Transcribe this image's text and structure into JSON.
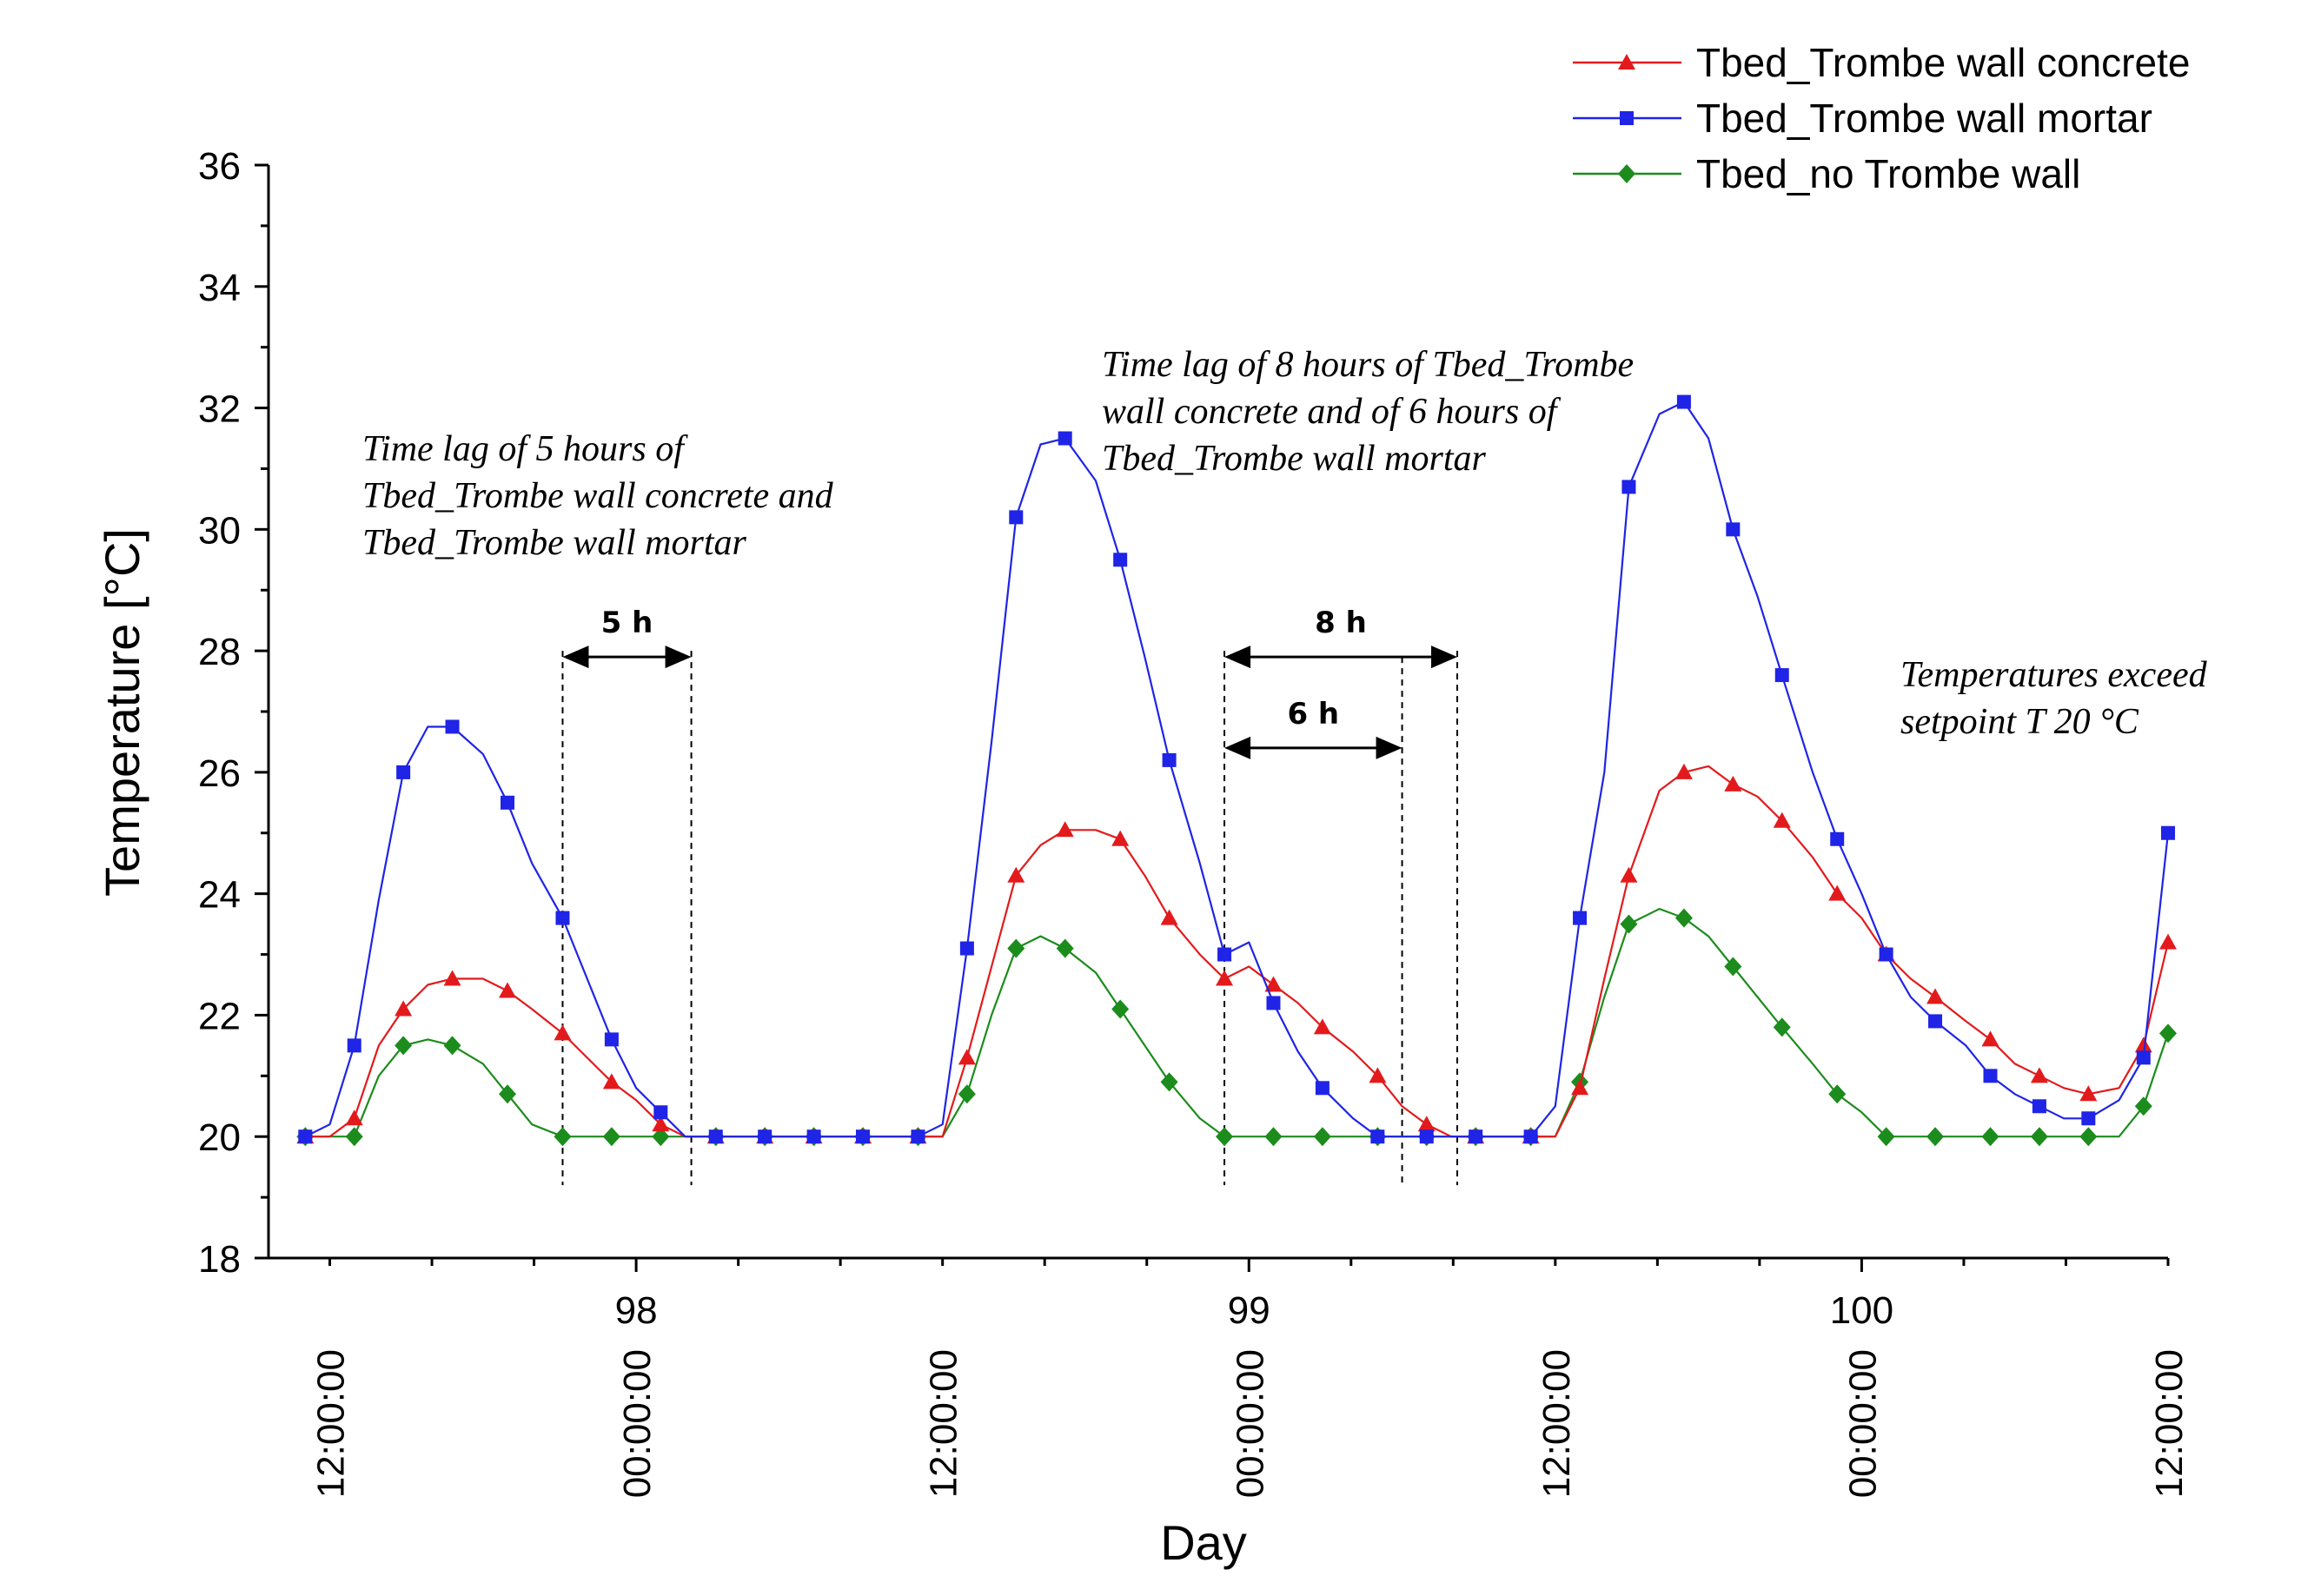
{
  "chart_data": {
    "type": "line",
    "xlabel": "Day",
    "ylabel": "Temperature [°C]",
    "xlim": [
      97.4,
      100.5
    ],
    "ylim": [
      18,
      36
    ],
    "yticks": [
      18,
      20,
      22,
      24,
      26,
      28,
      30,
      32,
      34,
      36
    ],
    "major_xticks": [
      {
        "x": 98,
        "label": "98"
      },
      {
        "x": 99,
        "label": "99"
      },
      {
        "x": 100,
        "label": "100"
      }
    ],
    "time_ticks": [
      {
        "x": 97.5,
        "label": "12:00:00"
      },
      {
        "x": 98.0,
        "label": "00:00:00"
      },
      {
        "x": 98.5,
        "label": "12:00:00"
      },
      {
        "x": 99.0,
        "label": "00:00:00"
      },
      {
        "x": 99.5,
        "label": "12:00:00"
      },
      {
        "x": 100.0,
        "label": "00:00:00"
      },
      {
        "x": 100.5,
        "label": "12:00:00"
      }
    ],
    "series": [
      {
        "name": "Tbed_Trombe wall concrete",
        "color": "#e31a1c",
        "marker": "triangle",
        "x": [
          97.46,
          97.5,
          97.54,
          97.58,
          97.62,
          97.66,
          97.7,
          97.75,
          97.79,
          97.83,
          97.88,
          97.92,
          97.96,
          98.0,
          98.04,
          98.08,
          98.13,
          98.17,
          98.21,
          98.25,
          98.29,
          98.33,
          98.37,
          98.42,
          98.46,
          98.5,
          98.54,
          98.58,
          98.62,
          98.66,
          98.7,
          98.75,
          98.79,
          98.83,
          98.87,
          98.92,
          98.96,
          99.0,
          99.04,
          99.08,
          99.12,
          99.17,
          99.21,
          99.25,
          99.29,
          99.33,
          99.37,
          99.42,
          99.46,
          99.5,
          99.54,
          99.58,
          99.62,
          99.67,
          99.71,
          99.75,
          99.79,
          99.83,
          99.87,
          99.92,
          99.96,
          100.0,
          100.04,
          100.08,
          100.12,
          100.17,
          100.21,
          100.25,
          100.29,
          100.33,
          100.37,
          100.42,
          100.46,
          100.5
        ],
        "y": [
          20.0,
          20.0,
          20.3,
          21.5,
          22.1,
          22.5,
          22.6,
          22.6,
          22.4,
          22.1,
          21.7,
          21.3,
          20.9,
          20.6,
          20.2,
          20.0,
          20.0,
          20.0,
          20.0,
          20.0,
          20.0,
          20.0,
          20.0,
          20.0,
          20.0,
          20.0,
          21.3,
          22.8,
          24.3,
          24.8,
          25.05,
          25.05,
          24.9,
          24.3,
          23.6,
          23.0,
          22.6,
          22.8,
          22.5,
          22.2,
          21.8,
          21.4,
          21.0,
          20.5,
          20.2,
          20.0,
          20.0,
          20.0,
          20.0,
          20.0,
          20.8,
          22.6,
          24.3,
          25.7,
          26.0,
          26.1,
          25.8,
          25.6,
          25.2,
          24.6,
          24.0,
          23.6,
          23.0,
          22.6,
          22.3,
          21.9,
          21.6,
          21.2,
          21.0,
          20.8,
          20.7,
          20.8,
          21.5,
          23.2
        ]
      },
      {
        "name": "Tbed_Trombe wall mortar",
        "color": "#1f24e6",
        "marker": "square",
        "x": [
          97.46,
          97.5,
          97.54,
          97.58,
          97.62,
          97.66,
          97.7,
          97.75,
          97.79,
          97.83,
          97.88,
          97.92,
          97.96,
          98.0,
          98.04,
          98.08,
          98.13,
          98.17,
          98.21,
          98.25,
          98.29,
          98.33,
          98.37,
          98.42,
          98.46,
          98.5,
          98.54,
          98.58,
          98.62,
          98.66,
          98.7,
          98.75,
          98.79,
          98.83,
          98.87,
          98.92,
          98.96,
          99.0,
          99.04,
          99.08,
          99.12,
          99.17,
          99.21,
          99.25,
          99.29,
          99.33,
          99.37,
          99.42,
          99.46,
          99.5,
          99.54,
          99.58,
          99.62,
          99.67,
          99.71,
          99.75,
          99.79,
          99.83,
          99.87,
          99.92,
          99.96,
          100.0,
          100.04,
          100.08,
          100.12,
          100.17,
          100.21,
          100.25,
          100.29,
          100.33,
          100.37,
          100.42,
          100.46,
          100.5
        ],
        "y": [
          20.0,
          20.2,
          21.5,
          23.9,
          26.0,
          26.75,
          26.75,
          26.3,
          25.5,
          24.5,
          23.6,
          22.6,
          21.6,
          20.8,
          20.4,
          20.0,
          20.0,
          20.0,
          20.0,
          20.0,
          20.0,
          20.0,
          20.0,
          20.0,
          20.0,
          20.2,
          23.1,
          26.5,
          30.2,
          31.4,
          31.5,
          30.8,
          29.5,
          27.9,
          26.2,
          24.5,
          23.0,
          23.2,
          22.2,
          21.4,
          20.8,
          20.3,
          20.0,
          20.0,
          20.0,
          20.0,
          20.0,
          20.0,
          20.0,
          20.5,
          23.6,
          26.0,
          30.7,
          31.9,
          32.1,
          31.5,
          30.0,
          28.9,
          27.6,
          26.0,
          24.9,
          24.0,
          23.0,
          22.3,
          21.9,
          21.5,
          21.0,
          20.7,
          20.5,
          20.3,
          20.3,
          20.6,
          21.3,
          25.0
        ]
      },
      {
        "name": "Tbed_no Trombe wall",
        "color": "#1c8c1c",
        "marker": "diamond",
        "x": [
          97.46,
          97.5,
          97.54,
          97.58,
          97.62,
          97.66,
          97.7,
          97.75,
          97.79,
          97.83,
          97.88,
          97.92,
          97.96,
          98.0,
          98.04,
          98.08,
          98.13,
          98.17,
          98.21,
          98.25,
          98.29,
          98.33,
          98.37,
          98.42,
          98.46,
          98.5,
          98.54,
          98.58,
          98.62,
          98.66,
          98.7,
          98.75,
          98.79,
          98.83,
          98.87,
          98.92,
          98.96,
          99.0,
          99.04,
          99.08,
          99.12,
          99.17,
          99.21,
          99.25,
          99.29,
          99.33,
          99.37,
          99.42,
          99.46,
          99.5,
          99.54,
          99.58,
          99.62,
          99.67,
          99.71,
          99.75,
          99.79,
          99.83,
          99.87,
          99.92,
          99.96,
          100.0,
          100.04,
          100.08,
          100.12,
          100.17,
          100.21,
          100.25,
          100.29,
          100.33,
          100.37,
          100.42,
          100.46,
          100.5
        ],
        "y": [
          20.0,
          20.0,
          20.0,
          21.0,
          21.5,
          21.6,
          21.5,
          21.2,
          20.7,
          20.2,
          20.0,
          20.0,
          20.0,
          20.0,
          20.0,
          20.0,
          20.0,
          20.0,
          20.0,
          20.0,
          20.0,
          20.0,
          20.0,
          20.0,
          20.0,
          20.0,
          20.7,
          22.0,
          23.1,
          23.3,
          23.1,
          22.7,
          22.1,
          21.5,
          20.9,
          20.3,
          20.0,
          20.0,
          20.0,
          20.0,
          20.0,
          20.0,
          20.0,
          20.0,
          20.0,
          20.0,
          20.0,
          20.0,
          20.0,
          20.0,
          20.9,
          22.3,
          23.5,
          23.75,
          23.6,
          23.3,
          22.8,
          22.3,
          21.8,
          21.2,
          20.7,
          20.4,
          20.0,
          20.0,
          20.0,
          20.0,
          20.0,
          20.0,
          20.0,
          20.0,
          20.0,
          20.0,
          20.5,
          21.7
        ]
      }
    ],
    "brackets": [
      {
        "label": "5 h",
        "x1": 97.88,
        "x2": 98.09,
        "y": 27.9
      },
      {
        "label": "8 h",
        "x1": 98.96,
        "x2": 99.34,
        "y": 27.9
      },
      {
        "label": "6 h",
        "x1": 98.96,
        "x2": 99.25,
        "y": 26.4
      }
    ],
    "annotations": [
      {
        "lines": [
          "Time lag of 5 hours of",
          "Tbed_Trombe wall concrete and",
          "Tbed_Trombe wall mortar"
        ]
      },
      {
        "lines": [
          "Time lag of 8 hours of Tbed_Trombe",
          "wall concrete and of 6 hours of",
          "Tbed_Trombe wall mortar"
        ]
      },
      {
        "lines": [
          "Temperatures exceed",
          "setpoint T 20 °C"
        ]
      }
    ],
    "legend_position": "top-right"
  }
}
